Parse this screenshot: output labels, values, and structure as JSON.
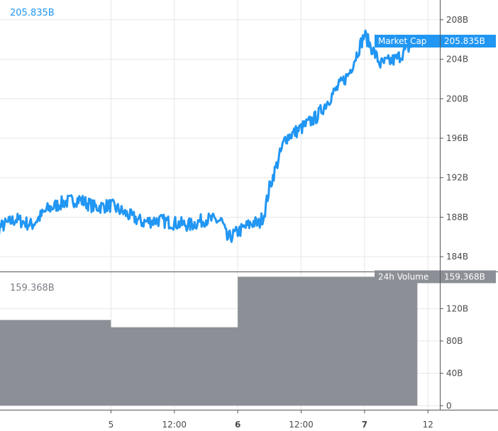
{
  "chart_data": [
    {
      "type": "line",
      "panel": "market-cap",
      "series": [
        {
          "name": "Market Cap",
          "color": "#2196f3",
          "x": [
            "4 00:00",
            "4 03:00",
            "4 06:00",
            "4 09:00",
            "4 12:00",
            "4 15:00",
            "4 18:00",
            "4 21:00",
            "5 00:00",
            "5 03:00",
            "5 06:00",
            "5 09:00",
            "5 12:00",
            "5 15:00",
            "5 18:00",
            "5 21:00",
            "5 22:00",
            "6 00:00",
            "6 03:00",
            "6 04:00",
            "6 05:00",
            "6 06:00",
            "6 09:00",
            "6 12:00",
            "6 15:00",
            "6 18:00",
            "6 21:00",
            "7 00:00",
            "7 01:00",
            "7 03:00",
            "7 06:00",
            "7 09:00",
            "7 10:00"
          ],
          "values": [
            186.0,
            187.0,
            187.8,
            187.2,
            188.8,
            189.5,
            189.8,
            189.0,
            189.2,
            188.3,
            187.5,
            187.7,
            187.4,
            187.2,
            187.8,
            187.6,
            185.8,
            186.5,
            187.5,
            187.3,
            188.3,
            191.0,
            196.0,
            197.0,
            198.2,
            200.5,
            202.5,
            206.5,
            205.5,
            203.5,
            204.0,
            205.5,
            205.835
          ]
        }
      ],
      "ylim": [
        182.5,
        210
      ],
      "yticks": [
        "208B",
        "204B",
        "200B",
        "196B",
        "192B",
        "188B",
        "184B"
      ],
      "ytick_values": [
        208,
        204,
        200,
        196,
        192,
        188,
        184
      ],
      "last_value_label": "205.835B",
      "legend": {
        "name": "Market Cap",
        "value": "205.835B"
      },
      "grid": true
    },
    {
      "type": "area",
      "panel": "volume",
      "series": [
        {
          "name": "24h Volume",
          "color": "#8c8f96",
          "x": [
            "4 00:00",
            "4 12:00",
            "5 00:00",
            "5 12:00",
            "6 00:00",
            "6 12:00",
            "7 00:00",
            "7 10:00"
          ],
          "values": [
            106,
            106,
            97,
            97,
            159.368,
            159.368,
            159.368,
            159.368
          ]
        }
      ],
      "ylim": [
        -5,
        165
      ],
      "yticks": [
        "120B",
        "80B",
        "40B",
        "0"
      ],
      "ytick_values": [
        120,
        80,
        40,
        0
      ],
      "last_value_label": "159.368B",
      "legend": {
        "name": "24h Volume",
        "value": "159.368B"
      },
      "grid": true
    }
  ],
  "x_axis": {
    "ticks": [
      {
        "label": "5",
        "value": "5 00:00",
        "bold": false
      },
      {
        "label": "12:00",
        "value": "5 12:00",
        "bold": false
      },
      {
        "label": "6",
        "value": "6 00:00",
        "bold": true
      },
      {
        "label": "12:00",
        "value": "6 12:00",
        "bold": false
      },
      {
        "label": "7",
        "value": "7 00:00",
        "bold": true
      },
      {
        "label": "12",
        "value": "7 12:00",
        "bold": false
      }
    ],
    "range": [
      "4 03:00",
      "7 14:15"
    ]
  }
}
